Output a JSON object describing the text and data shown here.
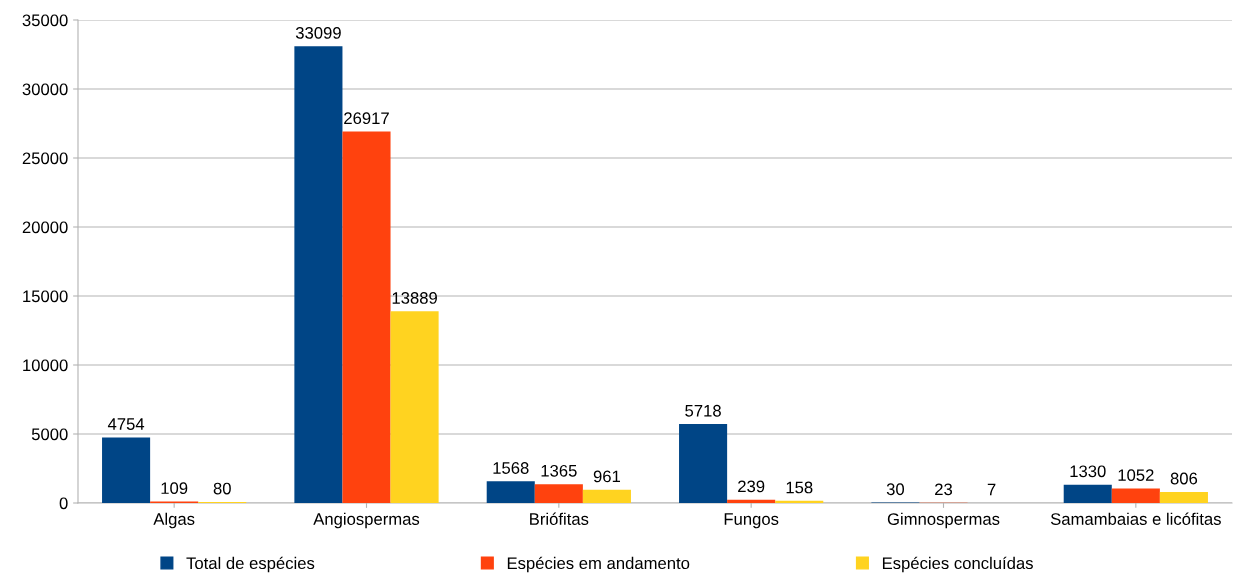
{
  "chart_data": {
    "type": "bar",
    "categories": [
      "Algas",
      "Angiospermas",
      "Briófitas",
      "Fungos",
      "Gimnospermas",
      "Samambaias e licófitas"
    ],
    "series": [
      {
        "name": "Total de espécies",
        "color": "#004586",
        "values": [
          4754,
          33099,
          1568,
          5718,
          30,
          1330
        ]
      },
      {
        "name": "Espécies em andamento",
        "color": "#ff420e",
        "values": [
          109,
          26917,
          1365,
          239,
          23,
          1052
        ]
      },
      {
        "name": "Espécies concluídas",
        "color": "#ffd320",
        "values": [
          80,
          13889,
          961,
          158,
          7,
          806
        ]
      }
    ],
    "ylim": [
      0,
      35000
    ],
    "yticks": [
      0,
      5000,
      10000,
      15000,
      20000,
      25000,
      30000,
      35000
    ],
    "grid": "y",
    "legend": "bottom",
    "data_labels": true
  }
}
